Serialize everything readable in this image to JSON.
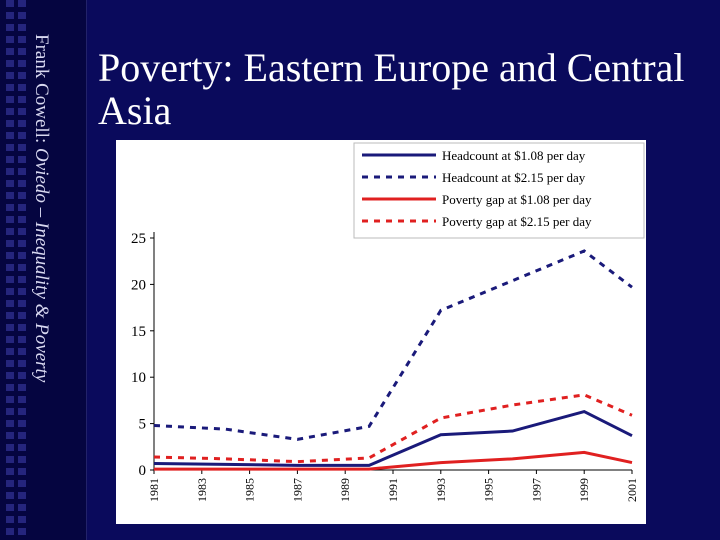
{
  "slide": {
    "title": "Poverty: Eastern Europe and Central Asia",
    "sidebar_author": "Frank Cowell: ",
    "sidebar_course": "Oviedo – Inequality & Poverty",
    "background_color": "#0a0a5c"
  },
  "chart_data": {
    "type": "line",
    "x": [
      1981,
      1984,
      1987,
      1990,
      1993,
      1996,
      1999,
      2001
    ],
    "x_ticks": [
      "1981",
      "1983",
      "1985",
      "1987",
      "1989",
      "1991",
      "1993",
      "1995",
      "1997",
      "1999",
      "2001"
    ],
    "y_ticks": [
      "0",
      "5",
      "10",
      "15",
      "20",
      "25"
    ],
    "ylim": [
      0,
      25
    ],
    "xlim": [
      1981,
      2001
    ],
    "grid": false,
    "legend_position": "top-right",
    "series": [
      {
        "name": "Headcount at $1.08 per day",
        "color": "#1a1a7a",
        "dash": false,
        "values": [
          0.7,
          0.6,
          0.5,
          0.5,
          3.8,
          4.2,
          6.3,
          3.7
        ]
      },
      {
        "name": "Headcount at $2.15 per day",
        "color": "#1a1a7a",
        "dash": true,
        "values": [
          4.8,
          4.4,
          3.3,
          4.7,
          17.2,
          20.4,
          23.6,
          19.7
        ]
      },
      {
        "name": "Poverty gap at $1.08 per day",
        "color": "#e02020",
        "dash": false,
        "values": [
          0.1,
          0.1,
          0.1,
          0.1,
          0.8,
          1.2,
          1.9,
          0.8
        ]
      },
      {
        "name": "Poverty gap at $2.15 per day",
        "color": "#e02020",
        "dash": true,
        "values": [
          1.4,
          1.2,
          0.9,
          1.3,
          5.6,
          7.0,
          8.1,
          5.9
        ]
      }
    ]
  }
}
